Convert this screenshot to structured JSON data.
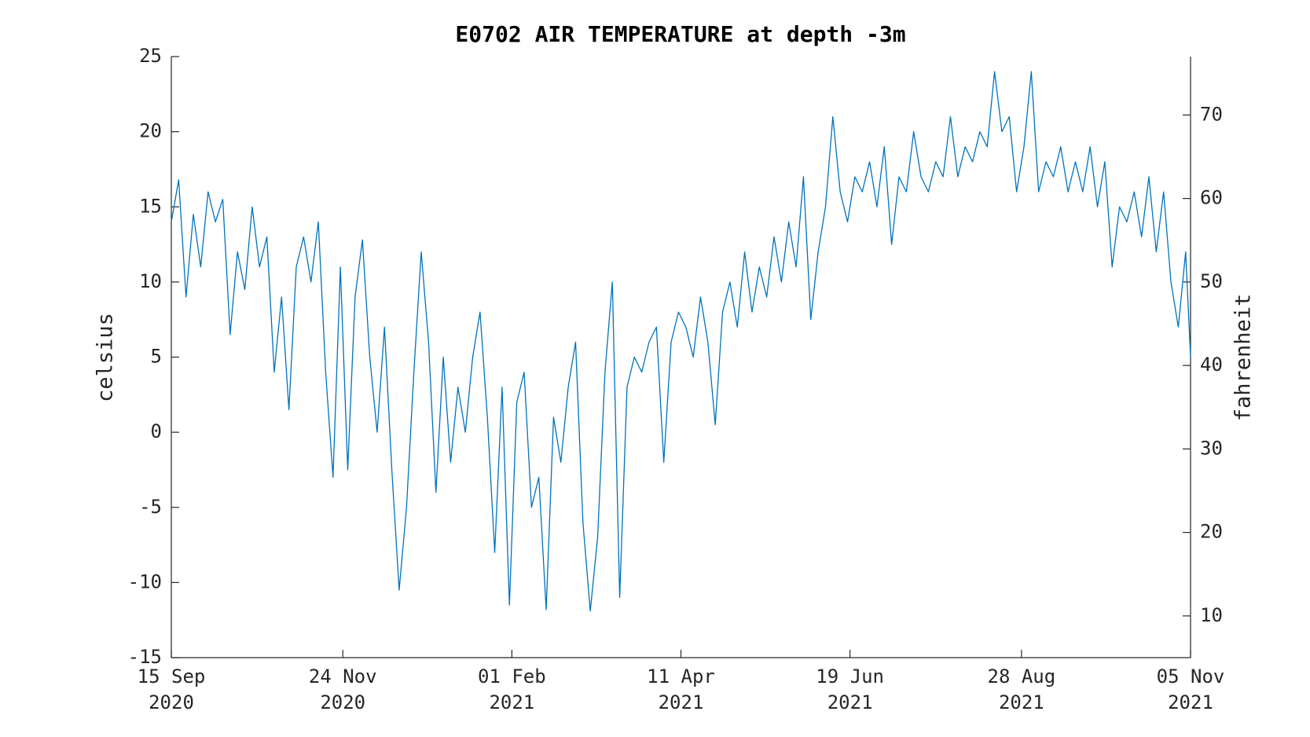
{
  "chart_data": {
    "type": "line",
    "title": "E0702 AIR TEMPERATURE at depth -3m",
    "ylabel": "celsius",
    "y2label": "fahrenheit",
    "x": [
      "2020-09-15",
      "2020-09-18",
      "2020-09-21",
      "2020-09-24",
      "2020-09-27",
      "2020-09-30",
      "2020-10-03",
      "2020-10-06",
      "2020-10-09",
      "2020-10-12",
      "2020-10-15",
      "2020-10-18",
      "2020-10-21",
      "2020-10-24",
      "2020-10-27",
      "2020-10-30",
      "2020-11-02",
      "2020-11-05",
      "2020-11-08",
      "2020-11-11",
      "2020-11-14",
      "2020-11-17",
      "2020-11-20",
      "2020-11-23",
      "2020-11-26",
      "2020-11-29",
      "2020-12-02",
      "2020-12-05",
      "2020-12-08",
      "2020-12-11",
      "2020-12-14",
      "2020-12-17",
      "2020-12-20",
      "2020-12-23",
      "2020-12-26",
      "2020-12-29",
      "2021-01-01",
      "2021-01-04",
      "2021-01-07",
      "2021-01-10",
      "2021-01-13",
      "2021-01-16",
      "2021-01-19",
      "2021-01-22",
      "2021-01-25",
      "2021-01-28",
      "2021-01-31",
      "2021-02-03",
      "2021-02-06",
      "2021-02-09",
      "2021-02-12",
      "2021-02-15",
      "2021-02-18",
      "2021-02-21",
      "2021-02-24",
      "2021-02-27",
      "2021-03-02",
      "2021-03-05",
      "2021-03-08",
      "2021-03-11",
      "2021-03-14",
      "2021-03-17",
      "2021-03-20",
      "2021-03-23",
      "2021-03-26",
      "2021-03-29",
      "2021-04-01",
      "2021-04-04",
      "2021-04-07",
      "2021-04-10",
      "2021-04-13",
      "2021-04-16",
      "2021-04-19",
      "2021-04-22",
      "2021-04-25",
      "2021-04-28",
      "2021-05-01",
      "2021-05-04",
      "2021-05-07",
      "2021-05-10",
      "2021-05-13",
      "2021-05-16",
      "2021-05-19",
      "2021-05-22",
      "2021-05-25",
      "2021-05-28",
      "2021-05-31",
      "2021-06-03",
      "2021-06-06",
      "2021-06-09",
      "2021-06-12",
      "2021-06-15",
      "2021-06-18",
      "2021-06-21",
      "2021-06-24",
      "2021-06-27",
      "2021-06-30",
      "2021-07-03",
      "2021-07-06",
      "2021-07-09",
      "2021-07-12",
      "2021-07-15",
      "2021-07-18",
      "2021-07-21",
      "2021-07-24",
      "2021-07-27",
      "2021-07-30",
      "2021-08-02",
      "2021-08-05",
      "2021-08-08",
      "2021-08-11",
      "2021-08-14",
      "2021-08-17",
      "2021-08-20",
      "2021-08-23",
      "2021-08-26",
      "2021-08-29",
      "2021-09-01",
      "2021-09-04",
      "2021-09-07",
      "2021-09-10",
      "2021-09-13",
      "2021-09-16",
      "2021-09-19",
      "2021-09-22",
      "2021-09-25",
      "2021-09-28",
      "2021-10-01",
      "2021-10-04",
      "2021-10-07",
      "2021-10-10",
      "2021-10-13",
      "2021-10-16",
      "2021-10-19",
      "2021-10-22",
      "2021-10-25",
      "2021-10-28",
      "2021-10-31",
      "2021-11-03",
      "2021-11-05"
    ],
    "series": [
      {
        "name": "E0702",
        "color": "#0072bd",
        "values": [
          14,
          16.8,
          9,
          14.5,
          11,
          16,
          14,
          15.5,
          6.5,
          12,
          9.5,
          15,
          11,
          13,
          4,
          9,
          1.5,
          11,
          13,
          10,
          14,
          4,
          -3,
          11,
          -2.5,
          9,
          12.8,
          5,
          0,
          7,
          -2.5,
          -10.5,
          -5,
          4,
          12,
          6,
          -4,
          5,
          -2,
          3,
          0,
          5,
          8,
          1,
          -8,
          3,
          -11.5,
          2,
          4,
          -5,
          -3,
          -11.8,
          1,
          -2,
          3,
          6,
          -6,
          -11.9,
          -7,
          4,
          10,
          -11,
          3,
          5,
          4,
          6,
          7,
          -2,
          6,
          8,
          7,
          5,
          9,
          6,
          0.5,
          8,
          10,
          7,
          12,
          8,
          11,
          9,
          13,
          10,
          14,
          11,
          17,
          7.5,
          12,
          15,
          21,
          16,
          14,
          17,
          16,
          18,
          15,
          19,
          12.5,
          17,
          16,
          20,
          17,
          16,
          18,
          17,
          21,
          17,
          19,
          18,
          20,
          19,
          24,
          20,
          21,
          16,
          19,
          24,
          16,
          18,
          17,
          19,
          16,
          18,
          16,
          19,
          15,
          18,
          11,
          15,
          14,
          16,
          13,
          17,
          12,
          16,
          10,
          7,
          12,
          5
        ]
      }
    ],
    "xlim": [
      "2020-09-15",
      "2021-11-05"
    ],
    "xticks": [
      {
        "value": "2020-09-15",
        "label": "15 Sep\n2020"
      },
      {
        "value": "2020-11-24",
        "label": "24 Nov\n2020"
      },
      {
        "value": "2021-02-01",
        "label": "01 Feb\n2021"
      },
      {
        "value": "2021-04-11",
        "label": "11 Apr\n2021"
      },
      {
        "value": "2021-06-19",
        "label": "19 Jun\n2021"
      },
      {
        "value": "2021-08-28",
        "label": "28 Aug\n2021"
      },
      {
        "value": "2021-11-05",
        "label": "05 Nov\n2021"
      }
    ],
    "ylim": [
      -15,
      25
    ],
    "yticks": [
      -15,
      -10,
      -5,
      0,
      5,
      10,
      15,
      20,
      25
    ],
    "y2lim": [
      5,
      77
    ],
    "y2ticks": [
      10,
      20,
      30,
      40,
      50,
      60,
      70
    ]
  }
}
